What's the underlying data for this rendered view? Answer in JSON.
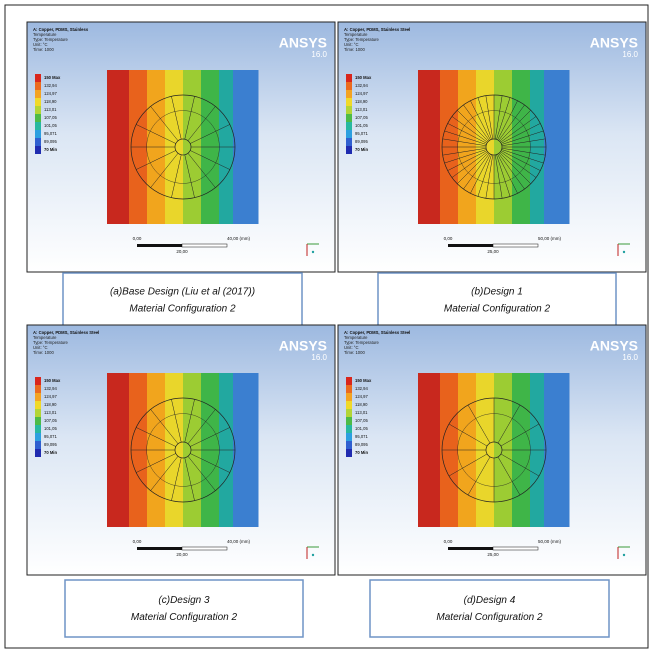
{
  "panels": [
    {
      "header": [
        "A: Copper, PDMS, Stainless",
        "Temperature",
        "Type: Temperature",
        "Unit: °C",
        "Time: 1000"
      ],
      "brand": "ANSYS",
      "version": "16.0",
      "legend": [
        "150 Max",
        "132,94",
        "124,97",
        "118,90",
        "113,01",
        "107,05",
        "101,05",
        "95,071",
        "89,095",
        "70 Min"
      ],
      "scale": {
        "start": "0,00",
        "end": "40,00 (mm)",
        "mid": "20,00"
      },
      "caption": [
        "(a)Base Design (Liu et al (2017))",
        "Material Configuration 2"
      ]
    },
    {
      "header": [
        "A: Copper, PDMS, Stainless Steel",
        "Temperature",
        "Type: Temperature",
        "Unit: °C",
        "Time: 1000"
      ],
      "brand": "ANSYS",
      "version": "16.0",
      "legend": [
        "150 Max",
        "132,94",
        "124,97",
        "118,90",
        "113,01",
        "107,05",
        "101,05",
        "95,071",
        "89,095",
        "70 Min"
      ],
      "scale": {
        "start": "0,00",
        "end": "50,00 (mm)",
        "mid": "25,00"
      },
      "caption": [
        "(b)Design 1",
        "Material Configuration 2"
      ]
    },
    {
      "header": [
        "A: Copper, PDMS, Stainless Steel",
        "Temperature",
        "Type: Temperature",
        "Unit: °C",
        "Time: 1000"
      ],
      "brand": "ANSYS",
      "version": "16.0",
      "legend": [
        "150 Max",
        "132,94",
        "124,97",
        "118,90",
        "113,01",
        "107,05",
        "101,05",
        "95,071",
        "89,095",
        "70 Min"
      ],
      "scale": {
        "start": "0,00",
        "end": "40,00 (mm)",
        "mid": "20,00"
      },
      "caption": [
        "(c)Design 3",
        "Material Configuration 2"
      ]
    },
    {
      "header": [
        "A: Copper, PDMS, Stainless Steel",
        "Temperature",
        "Type: Temperature",
        "Unit: °C",
        "Time: 1000"
      ],
      "brand": "ANSYS",
      "version": "16.0",
      "legend": [
        "150 Max",
        "132,94",
        "124,97",
        "118,90",
        "113,01",
        "107,05",
        "101,05",
        "95,071",
        "89,095",
        "70 Min"
      ],
      "scale": {
        "start": "0,00",
        "end": "50,00 (mm)",
        "mid": "25,00"
      },
      "caption": [
        "(d)Design 4",
        "Material Configuration 2"
      ]
    }
  ]
}
